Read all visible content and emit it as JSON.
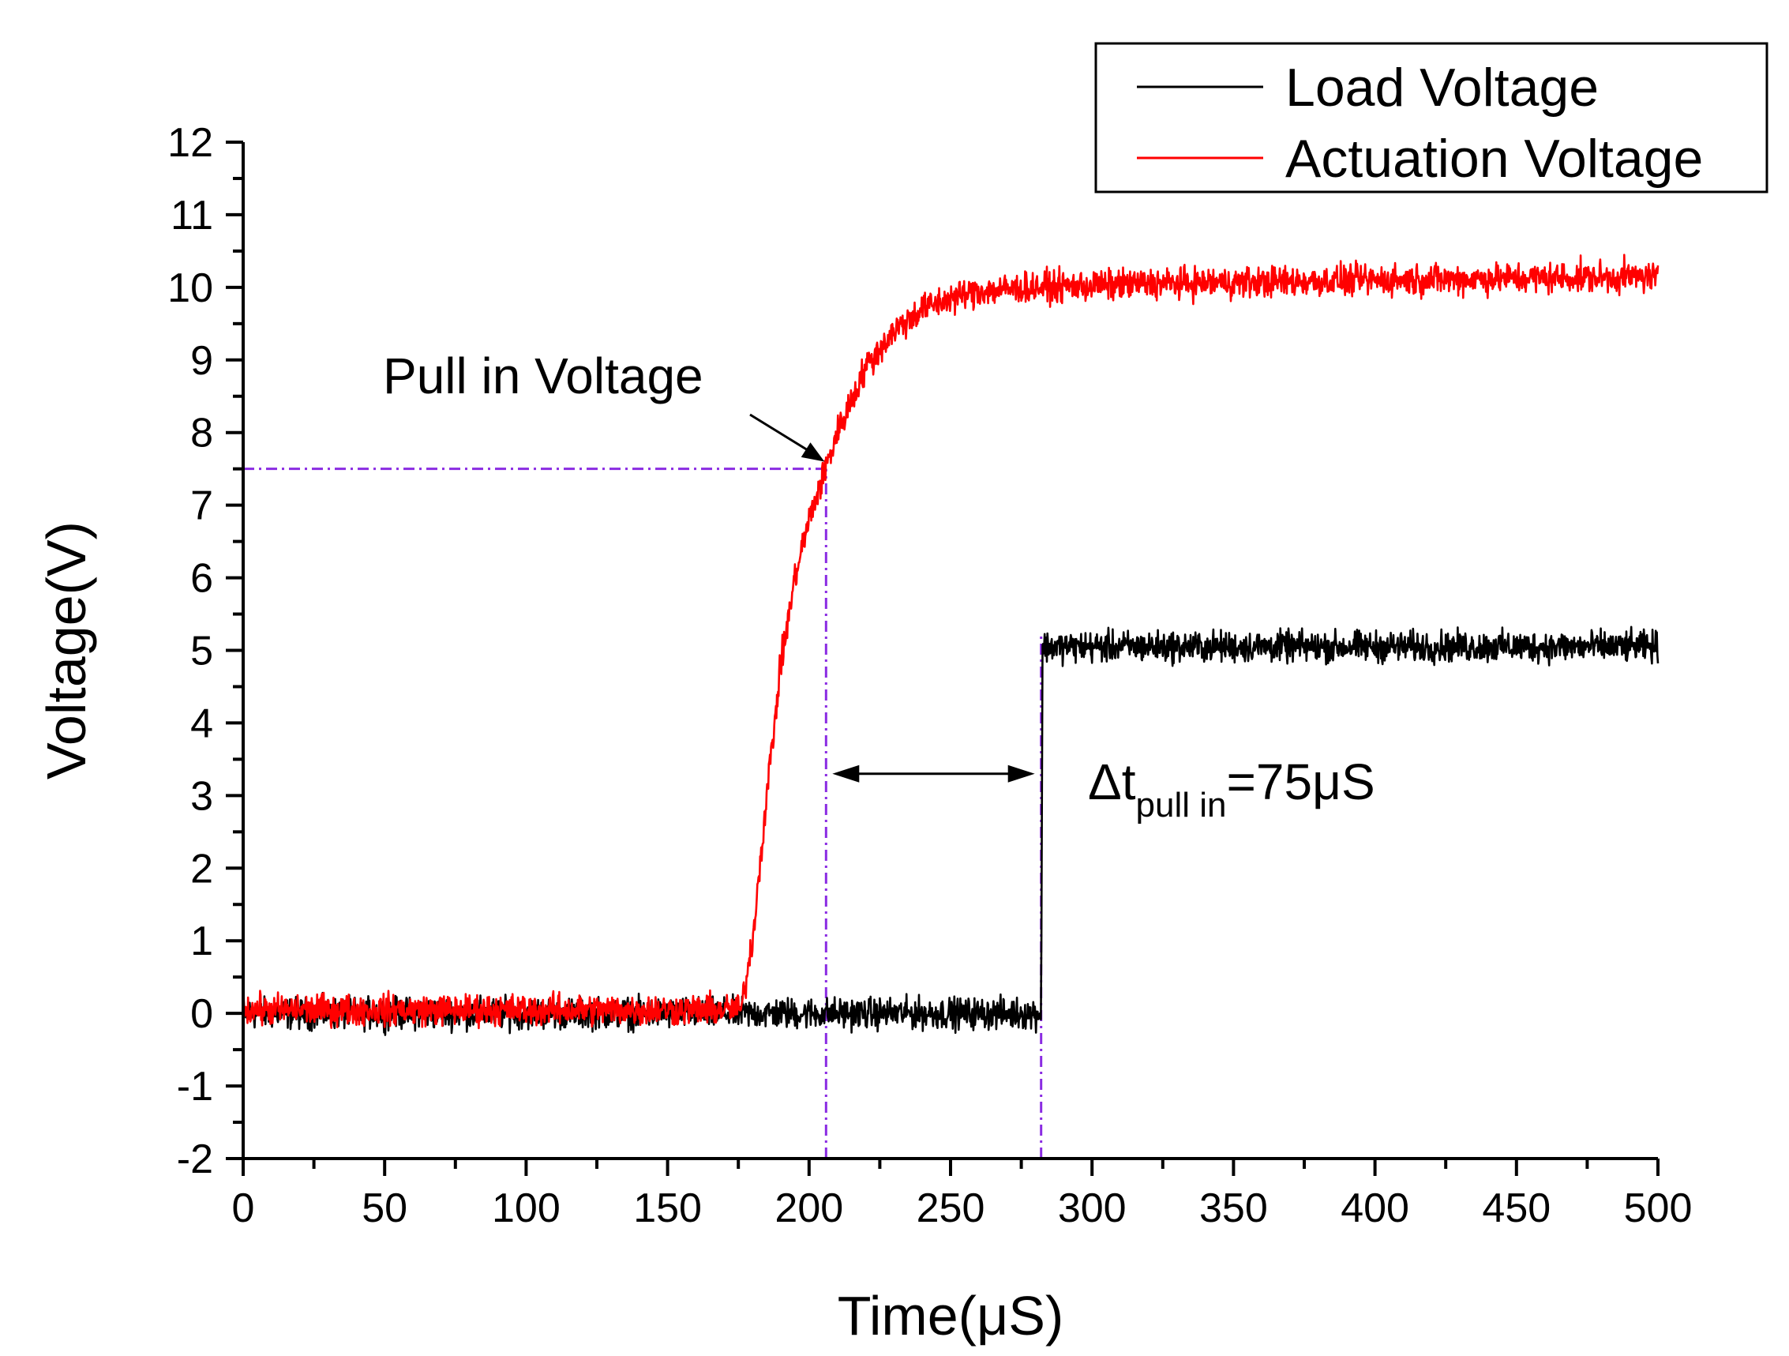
{
  "chart_data": {
    "type": "line",
    "xlabel": "Time(μS)",
    "ylabel": "Voltage(V)",
    "xlim": [
      0,
      500
    ],
    "ylim": [
      -2,
      12
    ],
    "x_ticks": [
      0,
      50,
      100,
      150,
      200,
      250,
      300,
      350,
      400,
      450,
      500
    ],
    "y_ticks": [
      -2,
      -1,
      0,
      1,
      2,
      3,
      4,
      5,
      6,
      7,
      8,
      9,
      10,
      11,
      12
    ],
    "x_tick_labels": [
      "0",
      "50",
      "100",
      "150",
      "200",
      "250",
      "300",
      "350",
      "400",
      "450",
      "500"
    ],
    "y_tick_labels": [
      "-2",
      "-1",
      "0",
      "1",
      "2",
      "3",
      "4",
      "5",
      "6",
      "7",
      "8",
      "9",
      "10",
      "11",
      "12"
    ],
    "legend_position": "top-right",
    "series": [
      {
        "name": "Load Voltage",
        "color": "#000000",
        "noise_amplitude": 0.15,
        "points": [
          [
            0,
            0
          ],
          [
            282,
            0
          ],
          [
            282.5,
            5.05
          ],
          [
            500,
            5.05
          ]
        ]
      },
      {
        "name": "Actuation Voltage",
        "color": "#ff0000",
        "noise_amplitude": 0.15,
        "points": [
          [
            0,
            0.05
          ],
          [
            176,
            0.05
          ],
          [
            180,
            1.0
          ],
          [
            185,
            3.0
          ],
          [
            190,
            4.8
          ],
          [
            195,
            6.0
          ],
          [
            200,
            6.8
          ],
          [
            205,
            7.4
          ],
          [
            210,
            8.0
          ],
          [
            220,
            8.9
          ],
          [
            230,
            9.4
          ],
          [
            240,
            9.7
          ],
          [
            250,
            9.85
          ],
          [
            260,
            9.95
          ],
          [
            280,
            10.0
          ],
          [
            320,
            10.05
          ],
          [
            400,
            10.1
          ],
          [
            500,
            10.15
          ]
        ]
      }
    ],
    "reference_lines": [
      {
        "type": "horizontal",
        "y": 7.5,
        "x_from": 0,
        "x_to": 206,
        "color": "#8a2be2"
      },
      {
        "type": "vertical",
        "x": 206,
        "y_from": -2,
        "y_to": 7.5,
        "color": "#8a2be2"
      },
      {
        "type": "vertical",
        "x": 282,
        "y_from": -2,
        "y_to": 5.2,
        "color": "#8a2be2"
      }
    ],
    "annotations": {
      "pull_in": {
        "text": "Pull in Voltage",
        "target_x": 206,
        "target_y": 7.6
      },
      "delta_t": {
        "prefix": "Δt",
        "subscript": "pull in",
        "suffix": "=75μS",
        "from_x": 206,
        "to_x": 282,
        "y": 3.3
      }
    }
  }
}
